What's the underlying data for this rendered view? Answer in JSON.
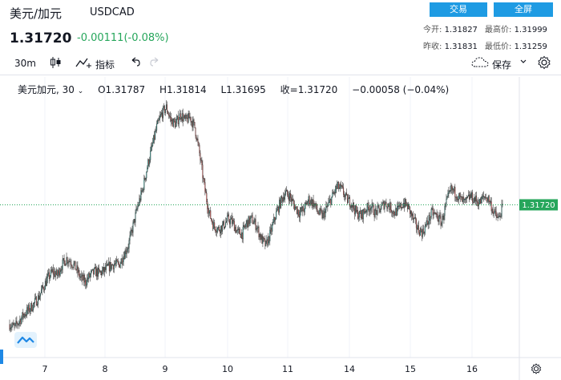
{
  "header": {
    "title": "美元/加元",
    "symbol": "USDCAD",
    "price": "1.31720",
    "change": "-0.00111(-0.08%)",
    "trade_label": "交易",
    "fullscreen_label": "全屏"
  },
  "stats": {
    "open_label": "今开:",
    "open_value": "1.31827",
    "high_label": "最高价:",
    "high_value": "1.31999",
    "prev_label": "昨收:",
    "prev_value": "1.31831",
    "low_label": "最低价:",
    "low_value": "1.31259"
  },
  "toolbar": {
    "interval": "30m",
    "indicators_label": "指标",
    "save_label": "保存"
  },
  "legend": {
    "name": "美元加元, 30",
    "open": "O1.31787",
    "high": "H1.31814",
    "low": "L1.31695",
    "close": "收=1.31720",
    "change": "−0.00058 (−0.04%)"
  },
  "chart_data": {
    "type": "candlestick",
    "interval": "30m",
    "x_tick_labels": [
      "7",
      "8",
      "9",
      "10",
      "11",
      "14",
      "15",
      "16"
    ],
    "last_price_label": "1.31720",
    "colors": {
      "up": "#26a69a",
      "down": "#ef5350",
      "last_price": "#26a65b"
    },
    "close_series": [
      1.299,
      1.2985,
      1.2995,
      1.3005,
      1.3012,
      1.302,
      1.303,
      1.3045,
      1.306,
      1.307,
      1.3065,
      1.308,
      1.309,
      1.3085,
      1.3075,
      1.306,
      1.3055,
      1.3065,
      1.307,
      1.3068,
      1.3072,
      1.3078,
      1.3082,
      1.308,
      1.3095,
      1.311,
      1.314,
      1.317,
      1.3195,
      1.323,
      1.326,
      1.329,
      1.331,
      1.332,
      1.33,
      1.3295,
      1.331,
      1.33,
      1.3305,
      1.329,
      1.325,
      1.32,
      1.316,
      1.314,
      1.3135,
      1.314,
      1.315,
      1.3145,
      1.313,
      1.3128,
      1.3145,
      1.315,
      1.314,
      1.312,
      1.311,
      1.313,
      1.3155,
      1.3175,
      1.319,
      1.3185,
      1.317,
      1.316,
      1.3165,
      1.318,
      1.3175,
      1.316,
      1.3155,
      1.317,
      1.3185,
      1.32,
      1.3195,
      1.318,
      1.3175,
      1.316,
      1.3155,
      1.3165,
      1.317,
      1.316,
      1.3165,
      1.3175,
      1.317,
      1.316,
      1.3165,
      1.3175,
      1.3168,
      1.315,
      1.3135,
      1.313,
      1.3145,
      1.316,
      1.3155,
      1.3145,
      1.3175,
      1.3195,
      1.319,
      1.318,
      1.3175,
      1.3185,
      1.318,
      1.3175,
      1.3185,
      1.318,
      1.316,
      1.315,
      1.3172
    ]
  }
}
